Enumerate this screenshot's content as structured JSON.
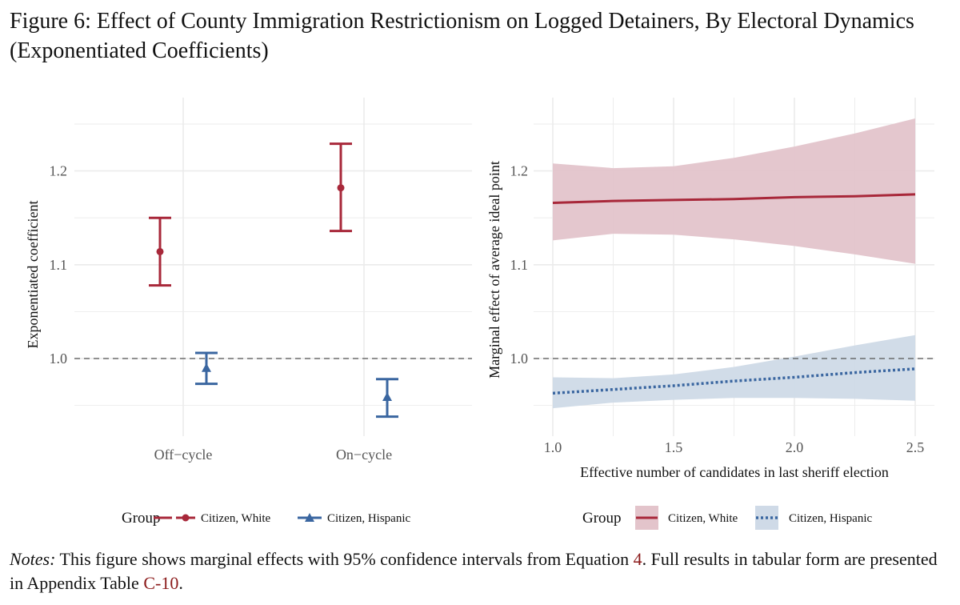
{
  "figure": {
    "title": "Figure 6: Effect of County Immigration Restrictionism on Logged Detainers, By Electoral Dynamics (Exponentiated Coefficients)"
  },
  "notes": {
    "label": "Notes:",
    "text_before": " This figure shows marginal effects with 95% confidence intervals from Equation ",
    "equation_ref": "4",
    "text_middle": ". Full results in tabular form are presented in Appendix Table ",
    "table_ref": "C-10",
    "text_after": "."
  },
  "colors": {
    "white_group": "#a8283a",
    "hispanic_group": "#3a66a0",
    "white_band": "#e3c4cb",
    "hispanic_band": "#cfdae7",
    "grid": "#ebebeb",
    "reference_line": "#555555"
  },
  "chart_data": [
    {
      "type": "scatter",
      "subtype": "point-with-error-bars",
      "categories": [
        "Off−cycle",
        "On−cycle"
      ],
      "ylabel": "Exponentiated coefficient",
      "xlabel": "",
      "ylim": [
        0.95,
        1.25
      ],
      "yticks": [
        1.0,
        1.1,
        1.2
      ],
      "ytick_labels": [
        "1.0",
        "1.1",
        "1.2"
      ],
      "reference_line": 1.0,
      "grid": true,
      "series": [
        {
          "name": "Citizen, White",
          "marker": "circle",
          "values": [
            1.114,
            1.182
          ],
          "lower": [
            1.078,
            1.136
          ],
          "upper": [
            1.15,
            1.229
          ]
        },
        {
          "name": "Citizen, Hispanic",
          "marker": "triangle",
          "values": [
            0.99,
            0.959
          ],
          "lower": [
            0.973,
            0.938
          ],
          "upper": [
            1.006,
            0.978
          ]
        }
      ],
      "legend_title": "Group",
      "legend_position": "bottom"
    },
    {
      "type": "line",
      "subtype": "line-with-confidence-band",
      "xlabel": "Effective number of candidates in last sheriff election",
      "ylabel": "Marginal effect of average ideal point",
      "xlim": [
        1.0,
        2.5
      ],
      "xticks": [
        1.0,
        1.5,
        2.0,
        2.5
      ],
      "xtick_labels": [
        "1.0",
        "1.5",
        "2.0",
        "2.5"
      ],
      "ylim": [
        0.95,
        1.25
      ],
      "yticks": [
        1.0,
        1.1,
        1.2
      ],
      "ytick_labels": [
        "1.0",
        "1.1",
        "1.2"
      ],
      "reference_line": 1.0,
      "grid": true,
      "series": [
        {
          "name": "Citizen, White",
          "line_style": "solid",
          "x": [
            1.0,
            1.25,
            1.5,
            1.75,
            2.0,
            2.25,
            2.5
          ],
          "y": [
            1.166,
            1.168,
            1.169,
            1.17,
            1.172,
            1.173,
            1.175
          ],
          "lower": [
            1.126,
            1.133,
            1.132,
            1.127,
            1.12,
            1.111,
            1.101
          ],
          "upper": [
            1.208,
            1.203,
            1.205,
            1.214,
            1.226,
            1.24,
            1.256
          ]
        },
        {
          "name": "Citizen, Hispanic",
          "line_style": "dotted",
          "x": [
            1.0,
            1.25,
            1.5,
            1.75,
            2.0,
            2.25,
            2.5
          ],
          "y": [
            0.963,
            0.967,
            0.971,
            0.976,
            0.98,
            0.985,
            0.989
          ],
          "lower": [
            0.947,
            0.953,
            0.956,
            0.958,
            0.958,
            0.957,
            0.955
          ],
          "upper": [
            0.98,
            0.979,
            0.983,
            0.991,
            1.002,
            1.014,
            1.025
          ]
        }
      ],
      "legend_title": "Group",
      "legend_position": "bottom"
    }
  ]
}
